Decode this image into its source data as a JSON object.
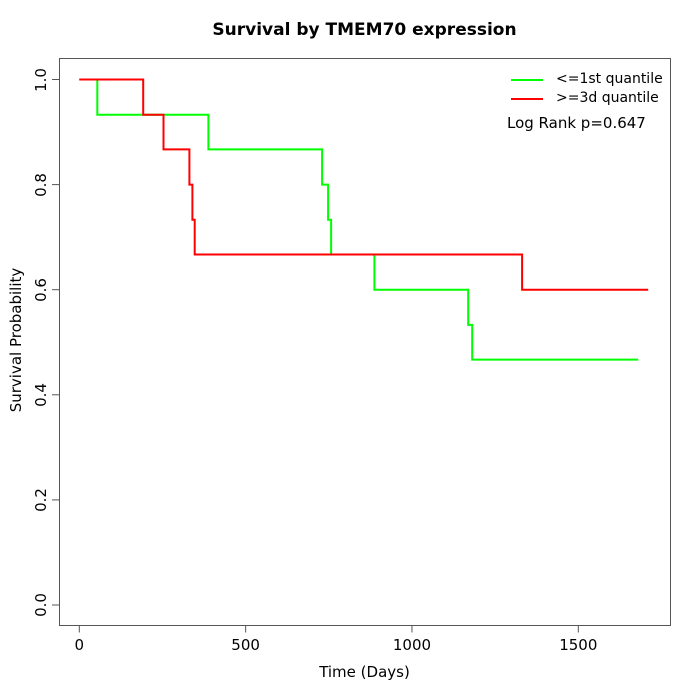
{
  "chart_data": {
    "type": "line",
    "subtype": "kaplan-meier-step",
    "title": "Survival by TMEM70 expression",
    "xlabel": "Time (Days)",
    "ylabel": "Survival Probability",
    "xlim": [
      0,
      1500
    ],
    "ylim": [
      0.0,
      1.0
    ],
    "grid": false,
    "x_ticks": [
      0,
      500,
      1000,
      1500
    ],
    "x_tick_labels": [
      "0",
      "500",
      "1000",
      "1500"
    ],
    "y_ticks": [
      0.0,
      0.2,
      0.4,
      0.6,
      0.8,
      1.0
    ],
    "y_tick_labels": [
      "0.0",
      "0.2",
      "0.4",
      "0.6",
      "0.8",
      "1.0"
    ],
    "legend": {
      "position": "top-right",
      "box": false,
      "items": [
        {
          "label": "<=1st quantile",
          "color": "#00ff00"
        },
        {
          "label": ">=3d quantile",
          "color": "#ff0000"
        }
      ]
    },
    "annotation": "Log Rank p=0.647",
    "axis_color": "#555555",
    "series": [
      {
        "name": "<=1st quantile",
        "color": "#00ff00",
        "points": [
          [
            0,
            1.0
          ],
          [
            54,
            1.0
          ],
          [
            54,
            0.933
          ],
          [
            388,
            0.933
          ],
          [
            388,
            0.867
          ],
          [
            730,
            0.867
          ],
          [
            730,
            0.8
          ],
          [
            748,
            0.8
          ],
          [
            748,
            0.733
          ],
          [
            757,
            0.733
          ],
          [
            757,
            0.667
          ],
          [
            887,
            0.667
          ],
          [
            887,
            0.6
          ],
          [
            1169,
            0.6
          ],
          [
            1169,
            0.533
          ],
          [
            1181,
            0.533
          ],
          [
            1181,
            0.467
          ],
          [
            1680,
            0.467
          ]
        ]
      },
      {
        "name": ">=3d quantile",
        "color": "#ff0000",
        "points": [
          [
            0,
            1.0
          ],
          [
            192,
            1.0
          ],
          [
            192,
            0.933
          ],
          [
            253,
            0.933
          ],
          [
            253,
            0.867
          ],
          [
            331,
            0.867
          ],
          [
            331,
            0.8
          ],
          [
            340,
            0.8
          ],
          [
            340,
            0.733
          ],
          [
            347,
            0.733
          ],
          [
            347,
            0.667
          ],
          [
            1331,
            0.667
          ],
          [
            1331,
            0.6
          ],
          [
            1710,
            0.6
          ]
        ]
      }
    ]
  }
}
